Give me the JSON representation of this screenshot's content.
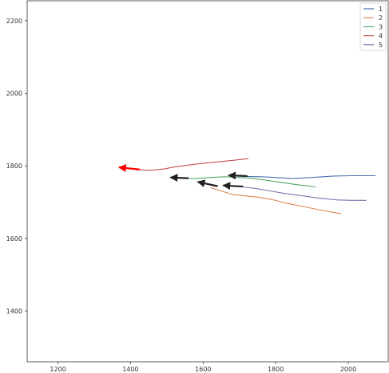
{
  "chart_data": {
    "type": "line",
    "title": "",
    "xlabel": "",
    "ylabel": "",
    "xlim": [
      1115,
      2110
    ],
    "ylim": [
      1260,
      2255
    ],
    "xticks": [
      1200,
      1400,
      1600,
      1800,
      2000
    ],
    "yticks": [
      1400,
      1600,
      1800,
      2000,
      2200
    ],
    "grid": false,
    "legend_position": "top-right",
    "series": [
      {
        "name": "1",
        "color": "#4c72b0",
        "x": [
          2075,
          2010,
          1960,
          1900,
          1845,
          1800,
          1760,
          1720,
          1690
        ],
        "y": [
          1773,
          1773,
          1772,
          1768,
          1765,
          1768,
          1770,
          1771,
          1772
        ],
        "arrow": {
          "from": [
            1722,
            1772
          ],
          "to": [
            1670,
            1774
          ],
          "color": "#222222"
        }
      },
      {
        "name": "2",
        "color": "#dd8452",
        "x": [
          1980,
          1930,
          1880,
          1830,
          1790,
          1750,
          1710,
          1680,
          1650,
          1620
        ],
        "y": [
          1668,
          1677,
          1687,
          1697,
          1707,
          1714,
          1718,
          1721,
          1731,
          1740
        ],
        "arrow": {
          "from": [
            1640,
            1744
          ],
          "to": [
            1585,
            1756
          ],
          "color": "#222222"
        }
      },
      {
        "name": "3",
        "color": "#55a868",
        "x": [
          1910,
          1860,
          1810,
          1770,
          1730,
          1700,
          1660,
          1620,
          1580,
          1560
        ],
        "y": [
          1742,
          1748,
          1755,
          1761,
          1766,
          1768,
          1770,
          1768,
          1765,
          1765
        ],
        "arrow": {
          "from": [
            1560,
            1766
          ],
          "to": [
            1510,
            1768
          ],
          "color": "#222222"
        }
      },
      {
        "name": "4",
        "color": "#c44e52",
        "x": [
          1725,
          1680,
          1630,
          1590,
          1550,
          1520,
          1495,
          1470,
          1450,
          1430,
          1410
        ],
        "y": [
          1820,
          1815,
          1810,
          1806,
          1801,
          1797,
          1792,
          1789,
          1788,
          1789,
          1791
        ],
        "arrow": {
          "from": [
            1425,
            1790
          ],
          "to": [
            1368,
            1796
          ],
          "color": "#ff0000"
        }
      },
      {
        "name": "5",
        "color": "#8172b3",
        "x": [
          2050,
          2010,
          1970,
          1920,
          1870,
          1830,
          1790,
          1750,
          1710
        ],
        "y": [
          1705,
          1705,
          1706,
          1711,
          1718,
          1723,
          1730,
          1737,
          1742
        ],
        "arrow": {
          "from": [
            1710,
            1743
          ],
          "to": [
            1655,
            1746
          ],
          "color": "#222222"
        }
      }
    ]
  }
}
